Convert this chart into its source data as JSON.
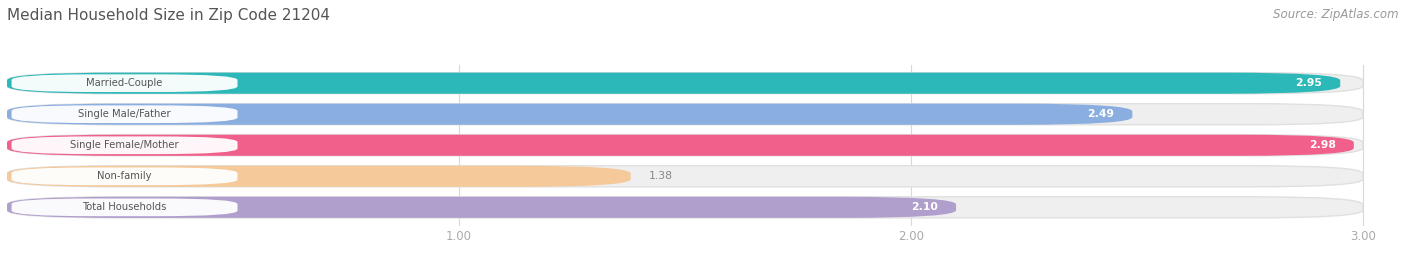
{
  "title": "Median Household Size in Zip Code 21204",
  "source": "Source: ZipAtlas.com",
  "categories": [
    "Married-Couple",
    "Single Male/Father",
    "Single Female/Mother",
    "Non-family",
    "Total Households"
  ],
  "values": [
    2.95,
    2.49,
    2.98,
    1.38,
    2.1
  ],
  "bar_colors": [
    "#2cb8b8",
    "#8aaee0",
    "#f0608a",
    "#f5c99a",
    "#b09fcc"
  ],
  "track_color": "#efefef",
  "track_edge_color": "#e0e0e0",
  "label_bg": "#ffffff",
  "label_text_color": "#555555",
  "value_text_color_inside": "#ffffff",
  "value_text_color_outside": "#888888",
  "xlim_start": 0,
  "xlim_end": 3.0,
  "xticks": [
    1.0,
    2.0,
    3.0
  ],
  "background_color": "#ffffff",
  "title_fontsize": 11,
  "source_fontsize": 8.5,
  "bar_height": 0.68,
  "value_inside_threshold": 2.0
}
